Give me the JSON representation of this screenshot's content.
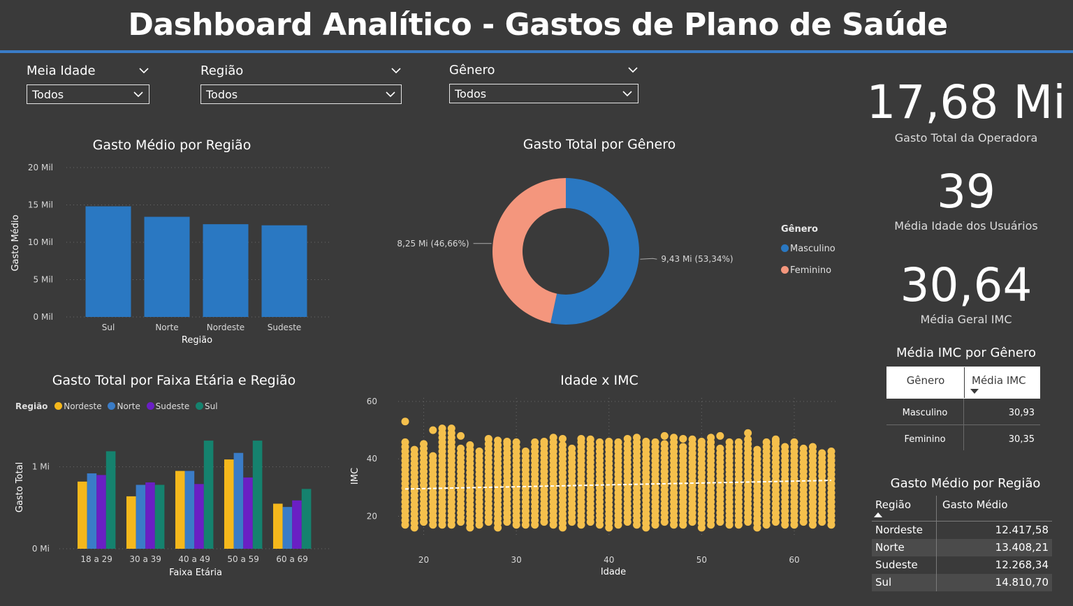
{
  "header": {
    "title": "Dashboard Analítico - Gastos de Plano de Saúde"
  },
  "slicers": [
    {
      "label": "Meia Idade",
      "value": "Todos"
    },
    {
      "label": "Região",
      "value": "Todos"
    },
    {
      "label": "Gênero",
      "value": "Todos"
    }
  ],
  "kpis": [
    {
      "value": "17,68 Mi",
      "label": "Gasto Total da Operadora"
    },
    {
      "value": "39",
      "label": "Média Idade dos Usuários"
    },
    {
      "value": "30,64",
      "label": "Média Geral IMC"
    }
  ],
  "colors": {
    "background": "#3a3a3a",
    "accent": "#3a7cc7",
    "masculino": "#2a78c2",
    "feminino": "#f4967d",
    "nordeste": "#f5b81c",
    "norte": "#3a7cc7",
    "sudeste": "#6a1fc4",
    "sul": "#15826e",
    "scatter": "#f5c04c"
  },
  "imc_table": {
    "title": "Média IMC por Gênero",
    "headers": [
      "Gênero",
      "Média IMC"
    ],
    "rows": [
      {
        "genero": "Masculino",
        "media": "30,93"
      },
      {
        "genero": "Feminino",
        "media": "30,35"
      }
    ]
  },
  "region_table": {
    "title": "Gasto Médio por Região",
    "headers": [
      "Região",
      "Gasto Médio"
    ],
    "rows": [
      {
        "regiao": "Nordeste",
        "gasto": "12.417,58"
      },
      {
        "regiao": "Norte",
        "gasto": "13.408,21"
      },
      {
        "regiao": "Sudeste",
        "gasto": "12.268,34"
      },
      {
        "regiao": "Sul",
        "gasto": "14.810,70"
      }
    ]
  },
  "chart_data": [
    {
      "id": "bar_regiao",
      "type": "bar",
      "title": "Gasto Médio por Região",
      "xlabel": "Região",
      "ylabel": "Gasto Médio",
      "categories": [
        "Sul",
        "Norte",
        "Nordeste",
        "Sudeste"
      ],
      "values": [
        14810.7,
        13408.21,
        12417.58,
        12268.34
      ],
      "ylim": [
        0,
        20000
      ],
      "yticks": [
        0,
        5000,
        10000,
        15000,
        20000
      ],
      "ytick_labels": [
        "0 Mil",
        "5 Mil",
        "10 Mil",
        "15 Mil",
        "20 Mil"
      ],
      "grid": true
    },
    {
      "id": "donut_genero",
      "type": "pie",
      "title": "Gasto Total por Gênero",
      "legend_title": "Gênero",
      "legend": "right",
      "categories": [
        "Masculino",
        "Feminino"
      ],
      "values": [
        9.43,
        8.25
      ],
      "data_labels": [
        "9,43 Mi (53,34%)",
        "8,25 Mi (46,66%)"
      ]
    },
    {
      "id": "bar_faixa",
      "type": "bar",
      "title": "Gasto Total por Faixa Etária e Região",
      "xlabel": "Faixa Etária",
      "ylabel": "Gasto Total",
      "legend_title": "Região",
      "legend": "top-left",
      "categories": [
        "18 a 29",
        "30 a 39",
        "40 a 49",
        "50 a 59",
        "60 a 69"
      ],
      "series": [
        {
          "name": "Nordeste",
          "values": [
            0.82,
            0.64,
            0.95,
            1.09,
            0.55
          ]
        },
        {
          "name": "Norte",
          "values": [
            0.92,
            0.78,
            0.95,
            1.17,
            0.51
          ]
        },
        {
          "name": "Sudeste",
          "values": [
            0.9,
            0.81,
            0.79,
            0.87,
            0.59
          ]
        },
        {
          "name": "Sul",
          "values": [
            1.19,
            0.78,
            1.32,
            1.32,
            0.73
          ]
        }
      ],
      "ylim": [
        0,
        1.5
      ],
      "yticks": [
        0,
        1
      ],
      "ytick_labels": [
        "0 Mi",
        "1 Mi"
      ],
      "grid": true
    },
    {
      "id": "scatter_idade_imc",
      "type": "scatter",
      "title": "Idade x IMC",
      "xlabel": "Idade",
      "ylabel": "IMC",
      "xlim": [
        18,
        64
      ],
      "ylim": [
        15,
        60
      ],
      "xticks": [
        20,
        30,
        40,
        50,
        60
      ],
      "yticks": [
        20,
        40,
        60
      ],
      "trend": [
        [
          18,
          29.5
        ],
        [
          64,
          32.5
        ]
      ],
      "grid": true,
      "bands": [
        [
          18,
          17,
          47
        ],
        [
          19,
          16,
          44
        ],
        [
          20,
          18,
          46
        ],
        [
          21,
          17,
          42
        ],
        [
          22,
          17,
          52
        ],
        [
          23,
          17,
          51
        ],
        [
          24,
          18,
          45
        ],
        [
          25,
          16,
          46
        ],
        [
          26,
          17,
          44
        ],
        [
          27,
          18,
          48
        ],
        [
          28,
          16,
          47
        ],
        [
          29,
          18,
          46
        ],
        [
          30,
          17,
          47
        ],
        [
          31,
          17,
          44
        ],
        [
          32,
          17,
          47
        ],
        [
          33,
          18,
          46
        ],
        [
          34,
          17,
          48
        ],
        [
          35,
          16,
          45
        ],
        [
          36,
          18,
          44
        ],
        [
          37,
          17,
          47
        ],
        [
          38,
          18,
          48
        ],
        [
          39,
          17,
          46
        ],
        [
          40,
          16,
          45
        ],
        [
          41,
          17,
          47
        ],
        [
          42,
          18,
          46
        ],
        [
          43,
          17,
          48
        ],
        [
          44,
          16,
          45
        ],
        [
          45,
          17,
          47
        ],
        [
          46,
          18,
          46
        ],
        [
          47,
          17,
          48
        ],
        [
          48,
          17,
          45
        ],
        [
          49,
          18,
          47
        ],
        [
          50,
          16,
          46
        ],
        [
          51,
          17,
          48
        ],
        [
          52,
          18,
          45
        ],
        [
          53,
          17,
          47
        ],
        [
          54,
          17,
          46
        ],
        [
          55,
          18,
          48
        ],
        [
          56,
          16,
          44
        ],
        [
          57,
          17,
          46
        ],
        [
          58,
          18,
          47
        ],
        [
          59,
          17,
          45
        ],
        [
          60,
          17,
          46
        ],
        [
          61,
          18,
          44
        ],
        [
          62,
          17,
          45
        ],
        [
          63,
          18,
          43
        ],
        [
          64,
          17,
          43
        ]
      ],
      "outliers": [
        [
          18,
          53
        ],
        [
          21,
          50
        ],
        [
          22,
          49
        ],
        [
          24,
          48
        ],
        [
          27,
          47
        ],
        [
          29,
          46
        ],
        [
          33,
          46
        ],
        [
          35,
          47
        ],
        [
          37,
          47
        ],
        [
          40,
          46
        ],
        [
          42,
          47
        ],
        [
          44,
          46
        ],
        [
          46,
          48
        ],
        [
          48,
          47
        ],
        [
          50,
          46
        ],
        [
          52,
          48
        ],
        [
          55,
          49
        ],
        [
          58,
          46
        ]
      ]
    }
  ]
}
